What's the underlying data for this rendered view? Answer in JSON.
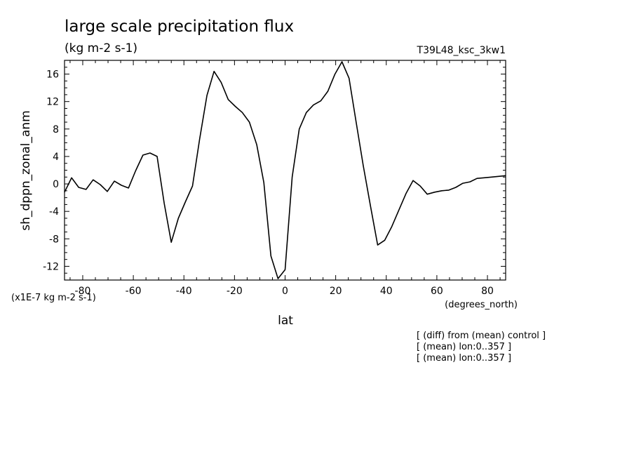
{
  "chart_data": {
    "type": "line",
    "title": "large scale precipitation flux",
    "units_label": "(kg m-2 s-1)",
    "run_label": "T39L48_ksc_3kw1",
    "xlabel": "lat",
    "ylabel": "sh_dppn_zonal_anm",
    "x_units": "(degrees_north)",
    "y_scale_label": "(x1E-7 kg m-2 s-1)",
    "xlim": [
      -87.2,
      87.2
    ],
    "ylim": [
      -14,
      18
    ],
    "x_ticks": [
      -80,
      -60,
      -40,
      -20,
      0,
      20,
      40,
      60,
      80
    ],
    "y_ticks": [
      -12,
      -8,
      -4,
      0,
      4,
      8,
      12,
      16
    ],
    "grid": false,
    "notes": [
      "[ (diff) from (mean) control ]",
      "[ (mean) lon:0..357 ]",
      "[ (mean) lon:0..357 ]"
    ],
    "series": [
      {
        "color": "#000000",
        "x": [
          -87.2,
          -84.4,
          -81.6,
          -78.7,
          -75.9,
          -73.1,
          -70.3,
          -67.5,
          -64.7,
          -61.9,
          -59.1,
          -56.2,
          -53.4,
          -50.6,
          -47.8,
          -45.0,
          -42.2,
          -39.4,
          -36.6,
          -33.8,
          -30.9,
          -28.1,
          -25.3,
          -22.5,
          -19.7,
          -16.9,
          -14.1,
          -11.2,
          -8.4,
          -5.6,
          -2.8,
          0.0,
          2.8,
          5.6,
          8.4,
          11.2,
          14.1,
          16.9,
          19.7,
          22.5,
          25.3,
          28.1,
          30.9,
          33.8,
          36.6,
          39.4,
          42.2,
          45.0,
          47.8,
          50.6,
          53.4,
          56.2,
          59.1,
          61.9,
          64.7,
          67.5,
          70.3,
          73.1,
          75.9,
          78.7,
          81.6,
          84.4,
          87.2
        ],
        "y": [
          -1.2,
          0.9,
          -0.5,
          -0.8,
          0.6,
          -0.1,
          -1.1,
          0.4,
          -0.2,
          -0.6,
          1.9,
          4.2,
          4.5,
          4.0,
          -2.8,
          -8.5,
          -5.0,
          -2.6,
          -0.3,
          6.5,
          12.9,
          16.4,
          14.8,
          12.3,
          11.3,
          10.4,
          9.0,
          5.7,
          0.2,
          -10.5,
          -13.8,
          -12.5,
          1.0,
          8.0,
          10.4,
          11.5,
          12.1,
          13.5,
          16.0,
          17.8,
          15.4,
          9.0,
          2.7,
          -3.3,
          -8.9,
          -8.2,
          -6.2,
          -3.8,
          -1.4,
          0.5,
          -0.3,
          -1.5,
          -1.2,
          -1.0,
          -0.9,
          -0.5,
          0.1,
          0.3,
          0.8,
          0.9,
          1.0,
          1.1,
          1.2
        ]
      }
    ]
  }
}
